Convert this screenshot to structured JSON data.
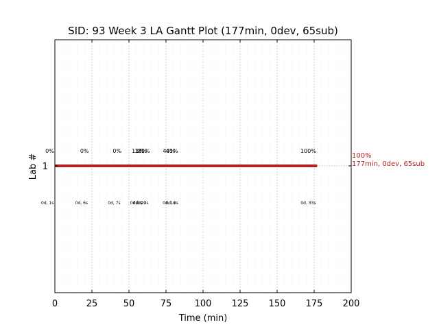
{
  "chart_data": {
    "type": "gantt",
    "title": "SID: 93 Week 3 LA Gantt Plot (177min, 0dev, 65sub)",
    "xlabel": "Time (min)",
    "ylabel": "Lab #",
    "xlim": [
      0,
      200
    ],
    "x_ticks": [
      "0",
      "25",
      "50",
      "75",
      "100",
      "125",
      "150",
      "175",
      "200"
    ],
    "y_categories": [
      "1"
    ],
    "grid": true,
    "bar": {
      "lab": "1",
      "start": 0,
      "end": 177,
      "color": "#b22222"
    },
    "end_annotation": {
      "line1": "100%",
      "line2": "177min, 0dev, 65sub",
      "color": "#b22222"
    },
    "percent_labels": [
      {
        "x": -3.5,
        "text": "0%"
      },
      {
        "x": 20,
        "text": "0%"
      },
      {
        "x": 42,
        "text": "0%"
      },
      {
        "x": 56,
        "text": "13%"
      },
      {
        "x": 58,
        "text": "18%"
      },
      {
        "x": 60,
        "text": "21%"
      },
      {
        "x": 77,
        "text": "40%"
      },
      {
        "x": 79,
        "text": "41%"
      },
      {
        "x": 171,
        "text": "100%"
      }
    ],
    "duration_labels": [
      {
        "x": -5,
        "text": "0d, 1s"
      },
      {
        "x": 18,
        "text": "0d, 6s"
      },
      {
        "x": 40,
        "text": "0d, 7s"
      },
      {
        "x": 55,
        "text": "0d, 1s"
      },
      {
        "x": 57,
        "text": "0d, 2s"
      },
      {
        "x": 59,
        "text": "0d, 3s"
      },
      {
        "x": 77,
        "text": "0d, 1s"
      },
      {
        "x": 79,
        "text": "0d, 8s"
      },
      {
        "x": 171,
        "text": "0d, 33s"
      }
    ]
  }
}
